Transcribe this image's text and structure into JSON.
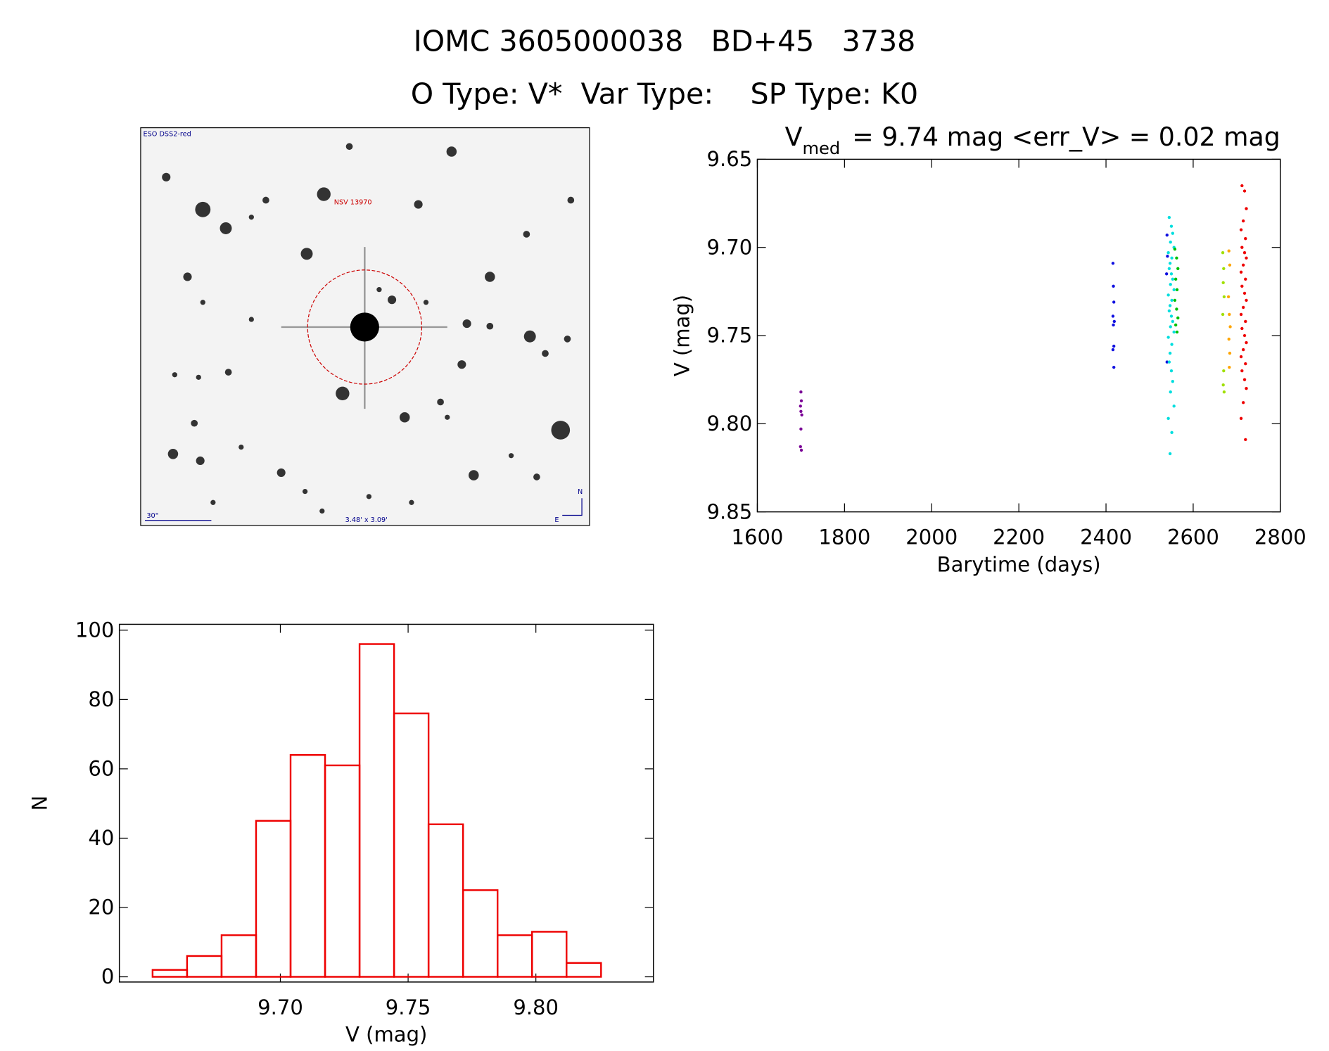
{
  "header": {
    "title": "IOMC 3605000038   BD+45   3738",
    "subtitle": "O Type: V*  Var Type:    SP Type: K0"
  },
  "finder_image": {
    "survey": "ESO DSS2-red",
    "target_label": "NSV 13970",
    "scale_bar": "30\"",
    "field_size": "3.48' x 3.09'",
    "north": "N",
    "east": "E"
  },
  "chart_data": [
    {
      "type": "scatter",
      "title": "V",
      "title_subscript": "med",
      "title_rest": "= 9.74 mag <err_V> = 0.02 mag",
      "x_label": "Barytime (days)",
      "y_label": "V (mag)",
      "xlim": [
        1600,
        2800
      ],
      "xticks": [
        1600,
        1800,
        2000,
        2200,
        2400,
        2600,
        2800
      ],
      "ylim": [
        9.65,
        9.85
      ],
      "y_inverted": true,
      "yticks": [
        9.65,
        {
          "value": 9.7,
          "label": "9.70"
        },
        9.75,
        {
          "value": 9.8,
          "label": "9.80"
        },
        9.85
      ],
      "series": [
        {
          "color": "#7a0096",
          "x": [
            1700,
            1701,
            1699,
            1700,
            1702,
            1700,
            1699,
            1701
          ],
          "values": [
            9.782,
            9.787,
            9.79,
            9.793,
            9.795,
            9.803,
            9.813,
            9.815
          ]
        },
        {
          "color": "#1010e0",
          "x": [
            2416,
            2417,
            2418,
            2416,
            2419,
            2417,
            2418,
            2416,
            2418,
            2540,
            2541,
            2539,
            2540
          ],
          "values": [
            9.709,
            9.722,
            9.731,
            9.739,
            9.742,
            9.744,
            9.756,
            9.758,
            9.768,
            9.693,
            9.705,
            9.715,
            9.765
          ]
        },
        {
          "color": "#00dede",
          "x": [
            2545,
            2550,
            2553,
            2548,
            2556,
            2543,
            2551,
            2547,
            2545,
            2550,
            2553,
            2548,
            2556,
            2543,
            2551,
            2547,
            2545,
            2550,
            2553,
            2548,
            2556,
            2543,
            2551,
            2547,
            2545,
            2550,
            2553,
            2548,
            2556,
            2543,
            2551,
            2547
          ],
          "values": [
            9.683,
            9.688,
            9.692,
            9.697,
            9.7,
            9.703,
            9.706,
            9.709,
            9.712,
            9.715,
            9.718,
            9.721,
            9.724,
            9.727,
            9.73,
            9.733,
            9.736,
            9.739,
            9.742,
            9.745,
            9.748,
            9.751,
            9.755,
            9.76,
            9.765,
            9.77,
            9.776,
            9.782,
            9.79,
            9.797,
            9.805,
            9.817
          ]
        },
        {
          "color": "#00c000",
          "x": [
            2558,
            2562,
            2565,
            2560,
            2563,
            2558,
            2562,
            2565,
            2560,
            2563
          ],
          "values": [
            9.701,
            9.706,
            9.712,
            9.718,
            9.724,
            9.73,
            9.735,
            9.74,
            9.744,
            9.748
          ]
        },
        {
          "color": "#a0e000",
          "x": [
            2668,
            2670,
            2669,
            2671,
            2668,
            2670,
            2669,
            2671
          ],
          "values": [
            9.703,
            9.712,
            9.72,
            9.728,
            9.738,
            9.77,
            9.778,
            9.782
          ]
        },
        {
          "color": "#ffa500",
          "x": [
            2682,
            2684,
            2681,
            2683,
            2685,
            2682,
            2684,
            2683
          ],
          "values": [
            9.702,
            9.71,
            9.728,
            9.738,
            9.745,
            9.752,
            9.76,
            9.768
          ]
        },
        {
          "color": "#ee0000",
          "x": [
            2712,
            2718,
            2722,
            2715,
            2710,
            2720,
            2712,
            2718,
            2722,
            2715,
            2710,
            2720,
            2712,
            2718,
            2722,
            2715,
            2710,
            2720,
            2712,
            2718,
            2722,
            2715,
            2710,
            2720,
            2712,
            2718,
            2722,
            2715,
            2710,
            2720
          ],
          "values": [
            9.665,
            9.668,
            9.678,
            9.685,
            9.69,
            9.695,
            9.7,
            9.703,
            9.706,
            9.71,
            9.714,
            9.718,
            9.722,
            9.726,
            9.73,
            9.734,
            9.738,
            9.742,
            9.746,
            9.75,
            9.754,
            9.758,
            9.762,
            9.766,
            9.77,
            9.775,
            9.78,
            9.788,
            9.797,
            9.809
          ]
        }
      ]
    },
    {
      "type": "histogram",
      "x_label": "V (mag)",
      "y_label": "N",
      "color": "#ee0000",
      "bins": [
        9.65,
        9.6635,
        9.677,
        9.6905,
        9.704,
        9.7175,
        9.731,
        9.7445,
        9.758,
        9.7715,
        9.785,
        9.7985,
        9.812,
        9.8255
      ],
      "values": [
        2,
        6,
        12,
        45,
        64,
        61,
        96,
        76,
        44,
        25,
        12,
        13,
        4
      ],
      "xlim": [
        9.637,
        9.846
      ],
      "xticks": [
        {
          "value": 9.7,
          "label": "9.70"
        },
        9.75,
        {
          "value": 9.8,
          "label": "9.80"
        }
      ],
      "ylim": [
        -1.5,
        101.7
      ],
      "yticks": [
        0,
        20,
        40,
        60,
        80,
        100
      ]
    }
  ]
}
